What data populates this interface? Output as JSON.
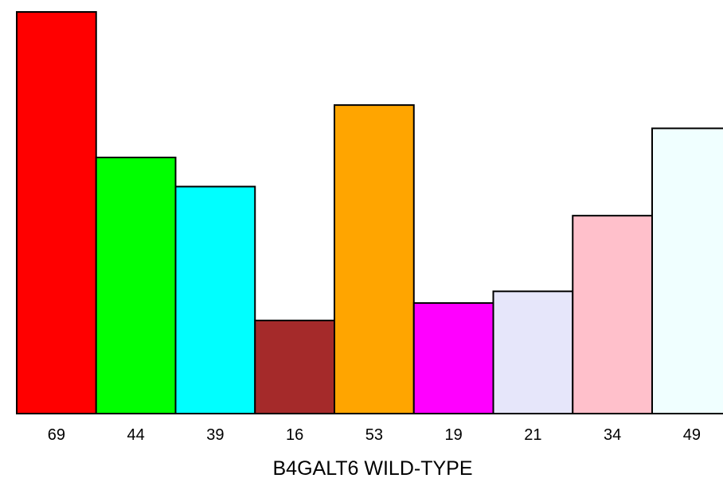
{
  "chart_data": {
    "type": "bar",
    "title": "",
    "xlabel": "B4GALT6 WILD-TYPE",
    "ylabel": "",
    "categories": [
      "69",
      "44",
      "39",
      "16",
      "53",
      "19",
      "21",
      "34",
      "49"
    ],
    "values": [
      69,
      44,
      39,
      16,
      53,
      19,
      21,
      34,
      49
    ],
    "colors": [
      "#ff0000",
      "#00ff00",
      "#00ffff",
      "#a52a2a",
      "#ffa500",
      "#ff00ff",
      "#e6e6fa",
      "#ffc0cb",
      "#f0ffff"
    ],
    "bar_outline": "#000000",
    "ylim": [
      0,
      69
    ],
    "grid": false,
    "legend": "none"
  }
}
